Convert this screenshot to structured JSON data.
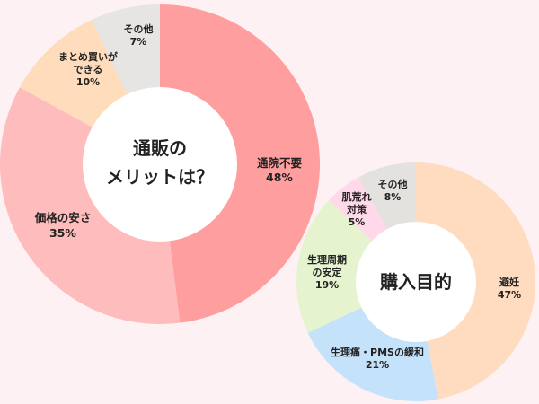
{
  "chart_data": [
    {
      "type": "pie",
      "title": "通販のメリットは？",
      "title_lines": [
        "通販の",
        "メリットは？"
      ],
      "categories": [
        "通院不要",
        "価格の安さ",
        "まとめ買いができる",
        "その他"
      ],
      "values": [
        48,
        35,
        10,
        7
      ],
      "value_labels": [
        "48%",
        "35%",
        "10%",
        "7%"
      ],
      "colors": [
        "#ff9e9e",
        "#ffbcbc",
        "#ffdcbb",
        "#e6e5e3"
      ]
    },
    {
      "type": "pie",
      "title": "購入目的",
      "title_lines": [
        "購入目的"
      ],
      "categories": [
        "避妊",
        "生理痛・PMSの緩和",
        "生理周期の安定",
        "肌荒れ対策",
        "その他"
      ],
      "values": [
        47,
        21,
        19,
        5,
        8
      ],
      "value_labels": [
        "47%",
        "21%",
        "19%",
        "5%",
        "8%"
      ],
      "colors": [
        "#ffdcc0",
        "#c5e2fb",
        "#e5f3cf",
        "#ffd8ea",
        "#e4e2df"
      ]
    }
  ]
}
